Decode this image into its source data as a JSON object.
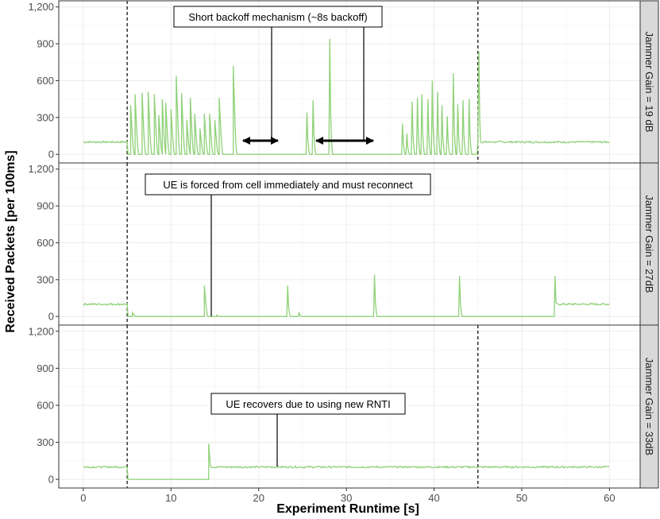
{
  "chart_data": {
    "type": "line",
    "xlabel": "Experiment Runtime [s]",
    "ylabel": "Received Packets [per 100ms]",
    "xlim": [
      -2.8,
      63.5
    ],
    "ylim": [
      -70,
      1250
    ],
    "x_ticks": [
      0,
      10,
      20,
      30,
      40,
      50,
      60
    ],
    "x_tick_labels": [
      "0",
      "10",
      "20",
      "30",
      "40",
      "50",
      "60"
    ],
    "y_ticks": [
      0,
      300,
      600,
      900,
      1200
    ],
    "y_tick_labels": [
      "0",
      "300",
      "600",
      "900",
      "1,200"
    ],
    "grid": true,
    "line_color": "#8fd177",
    "vlines": [
      5,
      45
    ],
    "panels": [
      {
        "strip": "Jammer Gain = 19 dB",
        "vlines": [
          5,
          45
        ],
        "segments": [
          {
            "from": 0,
            "to": 5,
            "value": 100
          },
          {
            "from": 5,
            "to": 45,
            "value": 0
          },
          {
            "from": 45,
            "to": 60,
            "value": 100
          }
        ],
        "spikes": [
          {
            "x": 5.4,
            "y": 400
          },
          {
            "x": 5.9,
            "y": 490
          },
          {
            "x": 6.7,
            "y": 500
          },
          {
            "x": 7.4,
            "y": 510
          },
          {
            "x": 8.1,
            "y": 490
          },
          {
            "x": 8.6,
            "y": 320
          },
          {
            "x": 9.0,
            "y": 450
          },
          {
            "x": 9.4,
            "y": 420
          },
          {
            "x": 10.0,
            "y": 370
          },
          {
            "x": 10.6,
            "y": 640
          },
          {
            "x": 11.2,
            "y": 500
          },
          {
            "x": 11.8,
            "y": 280
          },
          {
            "x": 12.2,
            "y": 460
          },
          {
            "x": 12.7,
            "y": 330
          },
          {
            "x": 13.3,
            "y": 210
          },
          {
            "x": 13.8,
            "y": 330
          },
          {
            "x": 14.4,
            "y": 330
          },
          {
            "x": 15.0,
            "y": 280
          },
          {
            "x": 15.5,
            "y": 460
          },
          {
            "x": 17.1,
            "y": 720
          },
          {
            "x": 25.5,
            "y": 340
          },
          {
            "x": 26.2,
            "y": 440
          },
          {
            "x": 28.1,
            "y": 940
          },
          {
            "x": 36.4,
            "y": 250
          },
          {
            "x": 36.9,
            "y": 170
          },
          {
            "x": 37.5,
            "y": 430
          },
          {
            "x": 38.1,
            "y": 460
          },
          {
            "x": 38.6,
            "y": 490
          },
          {
            "x": 39.3,
            "y": 450
          },
          {
            "x": 39.8,
            "y": 600
          },
          {
            "x": 40.4,
            "y": 510
          },
          {
            "x": 40.9,
            "y": 400
          },
          {
            "x": 41.5,
            "y": 310
          },
          {
            "x": 42.2,
            "y": 660
          },
          {
            "x": 42.7,
            "y": 410
          },
          {
            "x": 43.3,
            "y": 440
          },
          {
            "x": 44.0,
            "y": 450
          },
          {
            "x": 45.1,
            "y": 840
          }
        ]
      },
      {
        "strip": "Jammer Gain = 27dB",
        "vlines": [
          5
        ],
        "segments": [
          {
            "from": 0,
            "to": 5,
            "value": 100
          },
          {
            "from": 5,
            "to": 53.8,
            "value": 0
          },
          {
            "from": 53.8,
            "to": 60,
            "value": 100
          }
        ],
        "spikes": [
          {
            "x": 5.6,
            "y": 30
          },
          {
            "x": 13.8,
            "y": 250
          },
          {
            "x": 15.2,
            "y": 10
          },
          {
            "x": 23.3,
            "y": 250
          },
          {
            "x": 24.6,
            "y": 30
          },
          {
            "x": 33.2,
            "y": 340
          },
          {
            "x": 42.9,
            "y": 330
          },
          {
            "x": 53.8,
            "y": 330
          }
        ]
      },
      {
        "strip": "Jammer Gain = 33dB",
        "vlines": [
          5,
          45
        ],
        "segments": [
          {
            "from": 0,
            "to": 5,
            "value": 100
          },
          {
            "from": 5,
            "to": 14.3,
            "value": 0
          },
          {
            "from": 14.3,
            "to": 60,
            "value": 100
          }
        ],
        "spikes": [
          {
            "x": 14.3,
            "y": 290
          }
        ]
      }
    ],
    "annotations": [
      {
        "panel": 0,
        "text": "Short backoff mechanism (~8s backoff)"
      },
      {
        "panel": 1,
        "text": "UE is forced from cell immediately and must reconnect"
      },
      {
        "panel": 2,
        "text": "UE recovers due to using new RNTI"
      }
    ]
  }
}
